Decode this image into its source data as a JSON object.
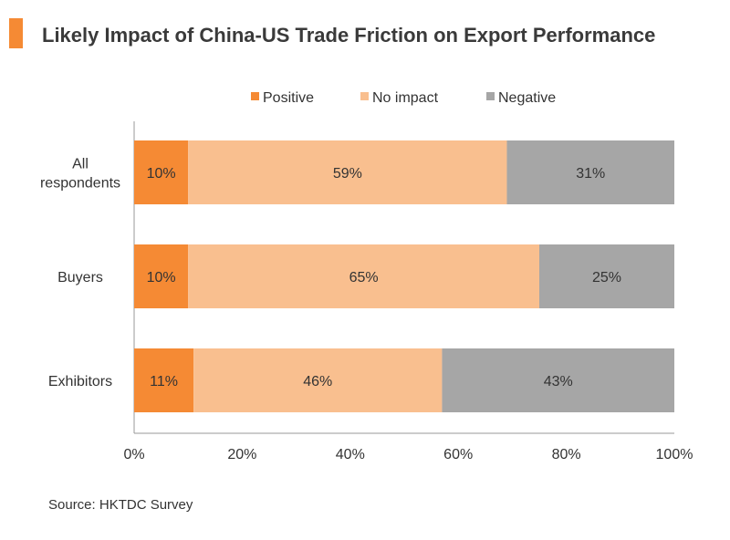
{
  "title": "Likely Impact of China-US Trade Friction on Export Performance",
  "source": "Source: HKTDC Survey",
  "colors": {
    "accent": "#F58A34",
    "Positive": "#F58A34",
    "No impact": "#F9BF8F",
    "Negative": "#A6A6A6"
  },
  "chart_data": {
    "type": "bar",
    "orientation": "horizontal",
    "stacked": "percent",
    "title": "Likely Impact of China-US Trade Friction on Export Performance",
    "categories": [
      [
        "All",
        "respondents"
      ],
      [
        "Buyers"
      ],
      [
        "Exhibitors"
      ]
    ],
    "series": [
      {
        "name": "Positive",
        "values": [
          10,
          10,
          11
        ],
        "labels": [
          "10%",
          "10%",
          "11%"
        ]
      },
      {
        "name": "No impact",
        "values": [
          59,
          65,
          46
        ],
        "labels": [
          "59%",
          "65%",
          "46%"
        ]
      },
      {
        "name": "Negative",
        "values": [
          31,
          25,
          43
        ],
        "labels": [
          "31%",
          "25%",
          "43%"
        ]
      }
    ],
    "xlim": [
      0,
      100
    ],
    "xticks": [
      "0%",
      "20%",
      "40%",
      "60%",
      "80%",
      "100%"
    ],
    "grid": false,
    "legend": "top"
  }
}
